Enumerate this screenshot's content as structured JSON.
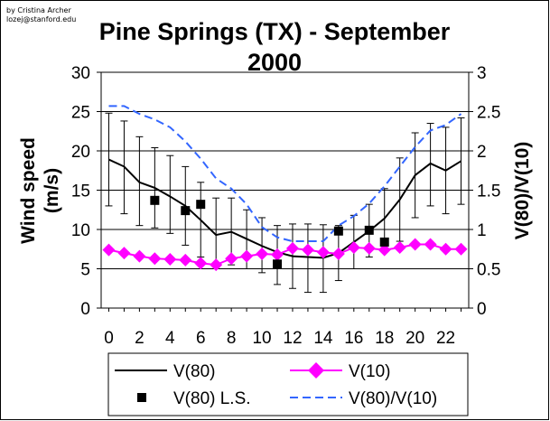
{
  "credit": {
    "line1": "by Cristina Archer",
    "line2": "lozej@stanford.edu"
  },
  "chart_data": {
    "type": "line",
    "title_line1": "Pine Springs (TX) - September",
    "title_line2": "2000",
    "xlabel": "",
    "ylabel_line1": "Wind speed",
    "ylabel_line2": "(m/s)",
    "y2label": "V(80)/V(10)",
    "xlim": [
      -0.5,
      23.5
    ],
    "ylim": [
      0,
      30
    ],
    "y2lim": [
      0,
      3
    ],
    "x_ticks": [
      "0",
      "2",
      "4",
      "6",
      "8",
      "10",
      "12",
      "14",
      "16",
      "18",
      "20",
      "22"
    ],
    "y_ticks": [
      "0",
      "5",
      "10",
      "15",
      "20",
      "25",
      "30"
    ],
    "y2_ticks": [
      "0",
      "0.5",
      "1",
      "1.5",
      "2",
      "2.5",
      "3"
    ],
    "grid": "horizontal",
    "series": [
      {
        "name": "V(80)",
        "axis": "left",
        "style": "solid-line",
        "color": "#000000",
        "x": [
          0,
          1,
          2,
          3,
          4,
          5,
          6,
          7,
          8,
          9,
          10,
          11,
          12,
          13,
          14,
          15,
          16,
          17,
          18,
          19,
          20,
          21,
          22,
          23
        ],
        "values": [
          18.9,
          18.0,
          16.0,
          15.3,
          14.2,
          13.0,
          11.2,
          9.3,
          9.7,
          8.8,
          7.9,
          7.1,
          6.6,
          6.5,
          6.4,
          7.0,
          8.4,
          9.8,
          11.4,
          13.8,
          16.9,
          18.4,
          17.5,
          18.7
        ],
        "error_low": [
          13.0,
          12.0,
          10.5,
          10.2,
          9.5,
          8.0,
          6.5,
          5.5,
          5.5,
          5.0,
          4.5,
          3.0,
          2.5,
          2.0,
          2.0,
          3.5,
          5.0,
          6.5,
          7.5,
          8.5,
          11.5,
          13.0,
          12.0,
          13.2
        ],
        "error_high": [
          24.8,
          23.8,
          21.8,
          20.4,
          19.4,
          18.0,
          16.0,
          14.0,
          14.0,
          12.5,
          11.5,
          10.5,
          10.7,
          10.7,
          10.6,
          10.5,
          11.8,
          13.2,
          15.2,
          19.1,
          22.3,
          23.5,
          23.0,
          24.2
        ]
      },
      {
        "name": "V(10)",
        "axis": "left",
        "style": "line-diamond",
        "color": "#ff00ff",
        "x": [
          0,
          1,
          2,
          3,
          4,
          5,
          6,
          7,
          8,
          9,
          10,
          11,
          12,
          13,
          14,
          15,
          16,
          17,
          18,
          19,
          20,
          21,
          22,
          23
        ],
        "values": [
          7.4,
          7.0,
          6.6,
          6.3,
          6.2,
          6.1,
          5.7,
          5.5,
          6.3,
          6.6,
          6.9,
          6.8,
          7.6,
          7.4,
          7.1,
          6.9,
          7.7,
          7.6,
          7.4,
          7.7,
          8.1,
          8.1,
          7.5,
          7.5
        ],
        "error_low": [],
        "error_high": []
      },
      {
        "name": "V(80) L.S.",
        "axis": "left",
        "style": "square-marker",
        "color": "#000000",
        "x": [
          3,
          5,
          6,
          11,
          15,
          17,
          18
        ],
        "values": [
          13.7,
          12.4,
          13.2,
          5.6,
          9.8,
          9.9,
          8.4
        ]
      },
      {
        "name": "V(80)/V(10)",
        "axis": "right",
        "style": "dashed-line",
        "color": "#3366ff",
        "x": [
          0,
          1,
          2,
          3,
          4,
          5,
          6,
          7,
          8,
          9,
          10,
          11,
          12,
          13,
          14,
          15,
          16,
          17,
          18,
          19,
          20,
          21,
          22,
          23
        ],
        "values": [
          2.57,
          2.57,
          2.47,
          2.4,
          2.3,
          2.12,
          1.9,
          1.65,
          1.52,
          1.32,
          1.03,
          0.9,
          0.85,
          0.85,
          0.85,
          1.05,
          1.17,
          1.33,
          1.55,
          1.8,
          2.05,
          2.26,
          2.33,
          2.47
        ]
      }
    ],
    "legend": {
      "placement": "bottom",
      "entries": [
        "V(80)",
        "V(10)",
        "V(80) L.S.",
        "V(80)/V(10)"
      ]
    }
  }
}
